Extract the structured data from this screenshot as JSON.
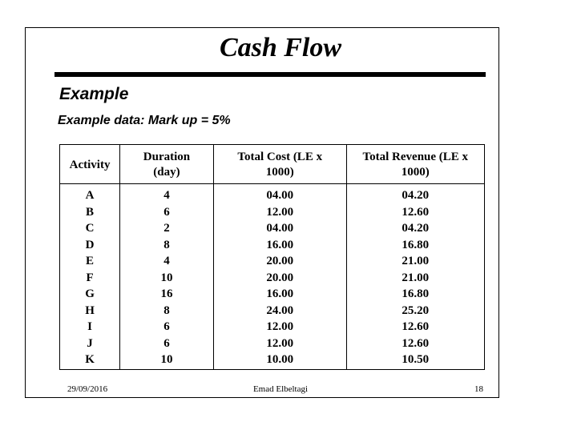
{
  "slide": {
    "title": "Cash Flow",
    "subtitle": "Example",
    "note": "Example data: Mark up = 5%"
  },
  "table": {
    "headers": {
      "activity": "Activity",
      "duration_line1": "Duration",
      "duration_line2": "(day)",
      "cost_line1": "Total Cost (LE x",
      "cost_line2": "1000)",
      "revenue_line1": "Total Revenue (LE x",
      "revenue_line2": "1000)"
    },
    "rows": [
      {
        "activity": "A",
        "duration": "4",
        "cost": "04.00",
        "revenue": "04.20"
      },
      {
        "activity": "B",
        "duration": "6",
        "cost": "12.00",
        "revenue": "12.60"
      },
      {
        "activity": "C",
        "duration": "2",
        "cost": "04.00",
        "revenue": "04.20"
      },
      {
        "activity": "D",
        "duration": "8",
        "cost": "16.00",
        "revenue": "16.80"
      },
      {
        "activity": "E",
        "duration": "4",
        "cost": "20.00",
        "revenue": "21.00"
      },
      {
        "activity": "F",
        "duration": "10",
        "cost": "20.00",
        "revenue": "21.00"
      },
      {
        "activity": "G",
        "duration": "16",
        "cost": "16.00",
        "revenue": "16.80"
      },
      {
        "activity": "H",
        "duration": "8",
        "cost": "24.00",
        "revenue": "25.20"
      },
      {
        "activity": "I",
        "duration": "6",
        "cost": "12.00",
        "revenue": "12.60"
      },
      {
        "activity": "J",
        "duration": "6",
        "cost": "12.00",
        "revenue": "12.60"
      },
      {
        "activity": "K",
        "duration": "10",
        "cost": "10.00",
        "revenue": "10.50"
      }
    ]
  },
  "footer": {
    "date": "29/09/2016",
    "author": "Emad Elbeltagi",
    "page": "18"
  }
}
